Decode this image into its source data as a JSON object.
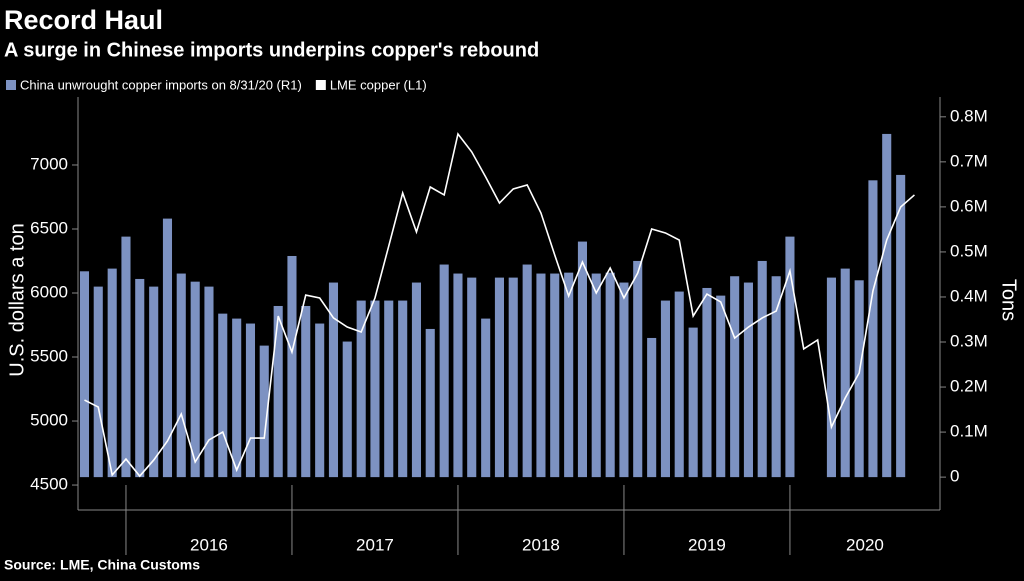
{
  "chart_data": {
    "type": "bar",
    "title": "Record Haul",
    "subtitle": "A surge in Chinese imports underpins copper's rebound",
    "source": "Source: LME, China Customs",
    "y_label": "U.S. dollars a ton",
    "y2_label": "Tons",
    "x": [
      2015.75,
      2015.833,
      2015.917,
      2016.0,
      2016.083,
      2016.167,
      2016.25,
      2016.333,
      2016.417,
      2016.5,
      2016.583,
      2016.667,
      2016.75,
      2016.833,
      2016.917,
      2017.0,
      2017.083,
      2017.167,
      2017.25,
      2017.333,
      2017.417,
      2017.5,
      2017.583,
      2017.667,
      2017.75,
      2017.833,
      2017.917,
      2018.0,
      2018.083,
      2018.167,
      2018.25,
      2018.333,
      2018.417,
      2018.5,
      2018.583,
      2018.667,
      2018.75,
      2018.833,
      2018.917,
      2019.0,
      2019.083,
      2019.167,
      2019.25,
      2019.333,
      2019.417,
      2019.5,
      2019.583,
      2019.667,
      2019.75,
      2019.833,
      2019.917,
      2020.0,
      2020.083,
      2020.167,
      2020.25,
      2020.333,
      2020.417,
      2020.5,
      2020.583,
      2020.667,
      2020.75
    ],
    "xlim": [
      2015.711,
      2020.904
    ],
    "xticks": [
      2016,
      2017,
      2018,
      2019,
      2020
    ],
    "ylim": [
      4305,
      7531
    ],
    "yticks": [
      4500,
      5000,
      5500,
      6000,
      6500,
      7000
    ],
    "y2lim": [
      -73000,
      844000
    ],
    "y2ticks": [
      {
        "value": 0,
        "label": "0"
      },
      {
        "value": 100000,
        "label": "0.1M"
      },
      {
        "value": 200000,
        "label": "0.2M"
      },
      {
        "value": 300000,
        "label": "0.3M"
      },
      {
        "value": 400000,
        "label": "0.4M"
      },
      {
        "value": 500000,
        "label": "0.5M"
      },
      {
        "value": 600000,
        "label": "0.6M"
      },
      {
        "value": 700000,
        "label": "0.7M"
      },
      {
        "value": 800000,
        "label": "0.8M"
      }
    ],
    "series": [
      {
        "name": "China unwrought copper imports on 8/31/20 (R1)",
        "type": "bar",
        "axis": "y2",
        "color": "#7d92c2",
        "values": [
          457000,
          423000,
          463000,
          534000,
          440000,
          423000,
          574000,
          452000,
          434000,
          423000,
          363000,
          352000,
          341000,
          292000,
          380000,
          491000,
          380000,
          341000,
          432000,
          301000,
          392000,
          392000,
          392000,
          392000,
          432000,
          329000,
          472000,
          452000,
          443000,
          352000,
          443000,
          443000,
          472000,
          452000,
          452000,
          454000,
          523000,
          452000,
          454000,
          432000,
          480000,
          309000,
          392000,
          412000,
          332000,
          420000,
          403000,
          446000,
          432000,
          480000,
          446000,
          534000,
          null,
          null,
          443000,
          463000,
          437000,
          659000,
          762000,
          671000,
          null
        ]
      },
      {
        "name": "LME copper (L1)",
        "type": "line",
        "axis": "y",
        "color": "#ffffff",
        "values": [
          5164,
          5109,
          4578,
          4703,
          4570,
          4695,
          4844,
          5055,
          4680,
          4852,
          4914,
          4617,
          4867,
          4867,
          5820,
          5539,
          5984,
          5961,
          5805,
          5734,
          5695,
          5961,
          6367,
          6781,
          6477,
          6828,
          6766,
          7242,
          7102,
          6906,
          6703,
          6813,
          6844,
          6625,
          6297,
          5977,
          6242,
          6000,
          6195,
          5961,
          6156,
          6500,
          6469,
          6414,
          5820,
          5992,
          5930,
          5648,
          5734,
          5805,
          5859,
          6172,
          5563,
          5633,
          4953,
          5180,
          5375,
          6016,
          6414,
          6672,
          6766
        ]
      }
    ]
  }
}
